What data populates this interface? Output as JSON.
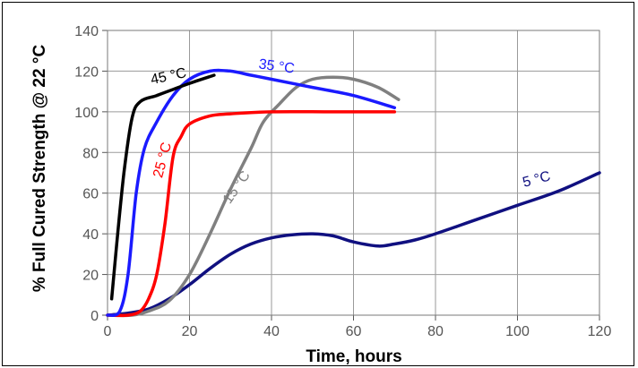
{
  "chart_data": {
    "type": "line",
    "title": "",
    "xlabel": "Time, hours",
    "ylabel": "% Full Cured Strength @ 22 °C",
    "xlim": [
      0,
      120
    ],
    "ylim": [
      0,
      140
    ],
    "xticks": [
      "0",
      "20",
      "40",
      "60",
      "80",
      "100",
      "120"
    ],
    "yticks": [
      "0",
      "20",
      "40",
      "60",
      "80",
      "100",
      "120",
      "140"
    ],
    "grid": true,
    "series": [
      {
        "name": "45 °C",
        "color": "#000000",
        "points": [
          [
            1,
            8
          ],
          [
            2,
            30
          ],
          [
            4,
            70
          ],
          [
            6,
            97
          ],
          [
            8,
            105
          ],
          [
            12,
            108
          ],
          [
            16,
            111
          ],
          [
            20,
            114
          ],
          [
            26,
            118
          ]
        ]
      },
      {
        "name": "35 °C",
        "color": "#1a1aff",
        "points": [
          [
            0,
            0
          ],
          [
            3,
            2
          ],
          [
            5,
            20
          ],
          [
            7,
            60
          ],
          [
            9,
            82
          ],
          [
            12,
            95
          ],
          [
            16,
            108
          ],
          [
            20,
            116
          ],
          [
            25,
            120
          ],
          [
            30,
            120
          ],
          [
            35,
            118
          ],
          [
            40,
            116
          ],
          [
            50,
            112
          ],
          [
            60,
            108
          ],
          [
            70,
            102
          ]
        ]
      },
      {
        "name": "25 °C",
        "color": "#ff0000",
        "points": [
          [
            0,
            0
          ],
          [
            5,
            0
          ],
          [
            8,
            2
          ],
          [
            10,
            8
          ],
          [
            12,
            20
          ],
          [
            14,
            45
          ],
          [
            16,
            78
          ],
          [
            18,
            88
          ],
          [
            20,
            94
          ],
          [
            25,
            98
          ],
          [
            30,
            99
          ],
          [
            40,
            100
          ],
          [
            55,
            100
          ],
          [
            70,
            100
          ]
        ]
      },
      {
        "name": "15 °C",
        "color": "#808080",
        "points": [
          [
            0,
            0
          ],
          [
            6,
            0
          ],
          [
            10,
            2
          ],
          [
            15,
            7
          ],
          [
            20,
            20
          ],
          [
            25,
            40
          ],
          [
            30,
            62
          ],
          [
            35,
            82
          ],
          [
            38,
            95
          ],
          [
            42,
            104
          ],
          [
            46,
            112
          ],
          [
            50,
            116
          ],
          [
            55,
            117
          ],
          [
            60,
            116
          ],
          [
            66,
            112
          ],
          [
            71,
            106
          ]
        ]
      },
      {
        "name": "5 °C",
        "color": "#101080",
        "points": [
          [
            0,
            0
          ],
          [
            5,
            1
          ],
          [
            10,
            3
          ],
          [
            15,
            8
          ],
          [
            20,
            15
          ],
          [
            25,
            23
          ],
          [
            30,
            30
          ],
          [
            35,
            35
          ],
          [
            40,
            38
          ],
          [
            45,
            39.5
          ],
          [
            50,
            40
          ],
          [
            55,
            39
          ],
          [
            60,
            36
          ],
          [
            66,
            34
          ],
          [
            70,
            35
          ],
          [
            75,
            37
          ],
          [
            80,
            40
          ],
          [
            90,
            47
          ],
          [
            100,
            54
          ],
          [
            110,
            61
          ],
          [
            120,
            70
          ]
        ]
      }
    ]
  }
}
